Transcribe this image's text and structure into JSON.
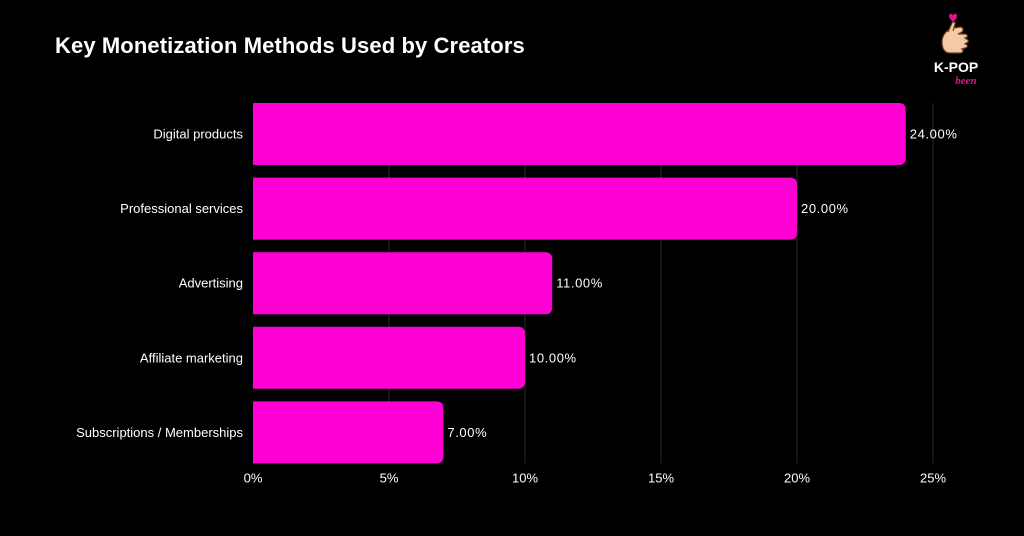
{
  "header": {
    "title": "Key Monetization Methods Used by Creators"
  },
  "logo": {
    "text_top": "K-POP",
    "text_bottom": "been",
    "icon": "finger-heart-hand-icon"
  },
  "colors": {
    "background": "#000000",
    "bar": "#ff00d4",
    "gridline": "#2a2a2a",
    "text": "#ffffff",
    "logo_accent": "#e0148c"
  },
  "chart_data": {
    "type": "bar",
    "orientation": "horizontal",
    "categories": [
      "Digital products",
      "Professional services",
      "Advertising",
      "Affiliate marketing",
      "Subscriptions / Memberships"
    ],
    "values": [
      24,
      20,
      11,
      10,
      7
    ],
    "value_labels": [
      "24.00%",
      "20.00%",
      "11.00%",
      "10.00%",
      "7.00%"
    ],
    "xlim": [
      0,
      25
    ],
    "xticks": [
      0,
      5,
      10,
      15,
      20,
      25
    ],
    "xtick_labels": [
      "0%",
      "5%",
      "10%",
      "15%",
      "20%",
      "25%"
    ],
    "grid": "vertical",
    "title": "Key Monetization Methods Used by Creators",
    "xlabel": "",
    "ylabel": ""
  }
}
